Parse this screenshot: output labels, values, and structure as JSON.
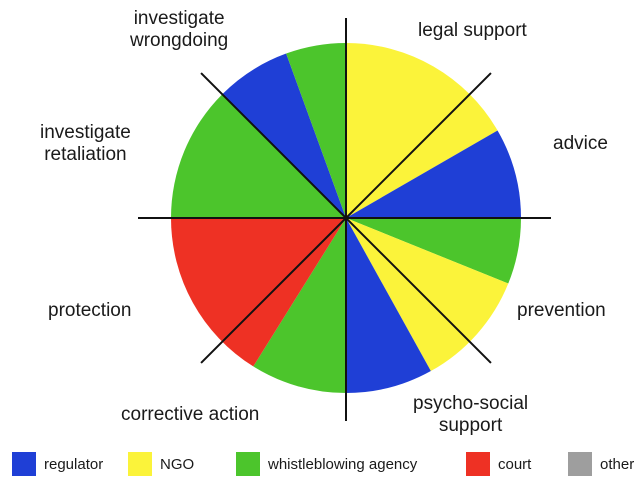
{
  "colors": {
    "regulator": "#1f3fd6",
    "ngo": "#fbf33a",
    "agency": "#4cc52c",
    "court": "#ee3124",
    "other": "#9e9e9e",
    "axis": "#111111"
  },
  "categories": {
    "investigate_wrongdoing": [
      "investigate",
      "wrongdoing"
    ],
    "legal_support": "legal support",
    "advice": "advice",
    "investigate_retaliation": [
      "investigate",
      "retaliation"
    ],
    "protection": "protection",
    "prevention": "prevention",
    "corrective_action": "corrective action",
    "psycho_social_support": [
      "psycho-social",
      "support"
    ]
  },
  "segments": [
    {
      "from": 0,
      "to": 60,
      "radius": 175,
      "color": "ngo"
    },
    {
      "from": 60,
      "to": 90,
      "radius": 175,
      "color": "regulator"
    },
    {
      "from": 90,
      "to": 112,
      "radius": 175,
      "color": "agency"
    },
    {
      "from": 112,
      "to": 151,
      "radius": 175,
      "color": "ngo"
    },
    {
      "from": 151,
      "to": 180,
      "radius": 175,
      "color": "regulator"
    },
    {
      "from": 180,
      "to": 212,
      "radius": 175,
      "color": "agency"
    },
    {
      "from": 212,
      "to": 270,
      "radius": 175,
      "color": "court"
    },
    {
      "from": 270,
      "to": 315,
      "radius": 175,
      "color": "agency"
    },
    {
      "from": 315,
      "to": 340,
      "radius": 175,
      "color": "regulator"
    },
    {
      "from": 340,
      "to": 360,
      "radius": 175,
      "color": "agency"
    }
  ],
  "legend": [
    {
      "key": "regulator",
      "label": "regulator"
    },
    {
      "key": "ngo",
      "label": "NGO"
    },
    {
      "key": "agency",
      "label": "whistleblowing agency"
    },
    {
      "key": "court",
      "label": "court"
    },
    {
      "key": "other",
      "label": "other"
    }
  ]
}
